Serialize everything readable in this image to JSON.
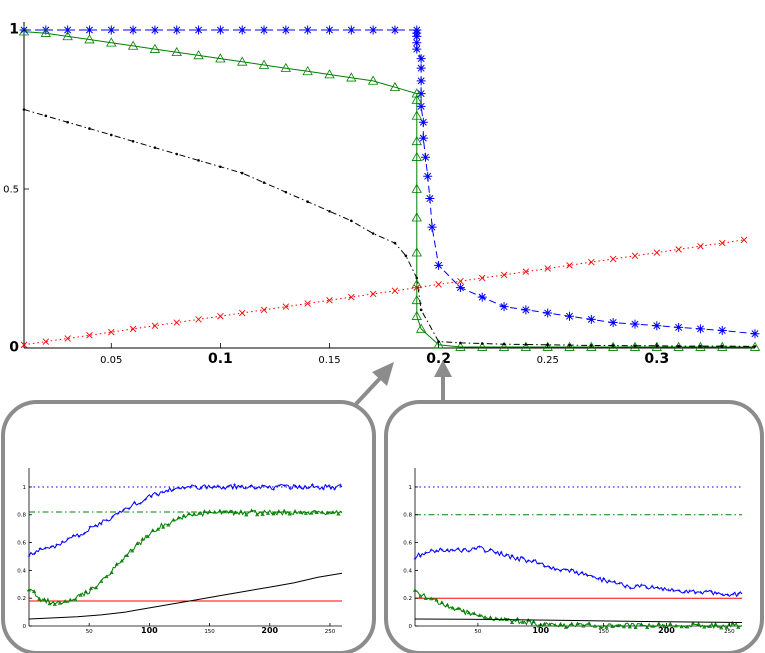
{
  "chart_data": [
    {
      "type": "line",
      "title": "",
      "xlabel": "",
      "ylabel": "",
      "xlim": [
        0.01,
        0.345
      ],
      "ylim": [
        0,
        1
      ],
      "grid": false,
      "x_ticks": [
        {
          "value": 0.05,
          "label": "0.05"
        },
        {
          "value": 0.1,
          "label": "0.1"
        },
        {
          "value": 0.15,
          "label": "0.15"
        },
        {
          "value": 0.2,
          "label": "0.2"
        },
        {
          "value": 0.25,
          "label": "0.25"
        },
        {
          "value": 0.3,
          "label": "0.3"
        }
      ],
      "y_ticks": [
        {
          "value": 0,
          "label": "0"
        },
        {
          "value": 0.5,
          "label": "0.5"
        },
        {
          "value": 1,
          "label": "1"
        }
      ],
      "series": [
        {
          "color": "#0000ff",
          "dash": "dashed",
          "marker": "asterisk",
          "x": [
            0.01,
            0.02,
            0.03,
            0.04,
            0.05,
            0.06,
            0.07,
            0.08,
            0.09,
            0.1,
            0.11,
            0.12,
            0.13,
            0.14,
            0.15,
            0.16,
            0.17,
            0.18,
            0.19,
            0.19,
            0.19,
            0.19,
            0.19,
            0.192,
            0.192,
            0.192,
            0.192,
            0.192,
            0.193,
            0.193,
            0.194,
            0.195,
            0.196,
            0.197,
            0.2,
            0.21,
            0.22,
            0.23,
            0.24,
            0.25,
            0.26,
            0.27,
            0.28,
            0.29,
            0.3,
            0.31,
            0.32,
            0.33,
            0.345
          ],
          "y": [
            1,
            1,
            1,
            1,
            1,
            1,
            1,
            1,
            1,
            1,
            1,
            1,
            1,
            1,
            1,
            1,
            1,
            1,
            1,
            0.99,
            0.98,
            0.96,
            0.94,
            0.91,
            0.88,
            0.84,
            0.8,
            0.76,
            0.71,
            0.66,
            0.6,
            0.54,
            0.47,
            0.38,
            0.26,
            0.19,
            0.16,
            0.13,
            0.12,
            0.11,
            0.1,
            0.09,
            0.08,
            0.075,
            0.07,
            0.065,
            0.06,
            0.055,
            0.045
          ]
        },
        {
          "color": "#008000",
          "dash": "solid",
          "marker": "triangle",
          "x": [
            0.01,
            0.02,
            0.03,
            0.04,
            0.05,
            0.06,
            0.07,
            0.08,
            0.09,
            0.1,
            0.11,
            0.12,
            0.13,
            0.14,
            0.15,
            0.16,
            0.17,
            0.18,
            0.19,
            0.19,
            0.19,
            0.19,
            0.19,
            0.19,
            0.19,
            0.19,
            0.19,
            0.19,
            0.19,
            0.192,
            0.2,
            0.21,
            0.22,
            0.23,
            0.24,
            0.25,
            0.26,
            0.27,
            0.28,
            0.29,
            0.3,
            0.31,
            0.32,
            0.33,
            0.345
          ],
          "y": [
            0.995,
            0.99,
            0.98,
            0.97,
            0.96,
            0.95,
            0.94,
            0.93,
            0.92,
            0.91,
            0.9,
            0.89,
            0.88,
            0.87,
            0.86,
            0.85,
            0.84,
            0.82,
            0.8,
            0.78,
            0.73,
            0.65,
            0.6,
            0.5,
            0.41,
            0.3,
            0.2,
            0.15,
            0.1,
            0.06,
            0.01,
            0.003,
            0.003,
            0.003,
            0.003,
            0.003,
            0.003,
            0.003,
            0.003,
            0.003,
            0.003,
            0.003,
            0.003,
            0.003,
            0.003
          ]
        },
        {
          "color": "#000000",
          "dash": "dashdot",
          "marker": "dot",
          "x": [
            0.01,
            0.02,
            0.03,
            0.04,
            0.05,
            0.06,
            0.07,
            0.08,
            0.09,
            0.1,
            0.11,
            0.12,
            0.13,
            0.14,
            0.15,
            0.16,
            0.17,
            0.18,
            0.185,
            0.19,
            0.192,
            0.2,
            0.21,
            0.22,
            0.23,
            0.24,
            0.25,
            0.26,
            0.27,
            0.28,
            0.29,
            0.3,
            0.31,
            0.32,
            0.33,
            0.345
          ],
          "y": [
            0.75,
            0.73,
            0.71,
            0.69,
            0.67,
            0.65,
            0.63,
            0.61,
            0.59,
            0.57,
            0.55,
            0.52,
            0.49,
            0.46,
            0.43,
            0.4,
            0.36,
            0.33,
            0.29,
            0.22,
            0.12,
            0.02,
            0.016,
            0.014,
            0.012,
            0.011,
            0.01,
            0.009,
            0.008,
            0.008,
            0.007,
            0.007,
            0.006,
            0.006,
            0.006,
            0.005
          ]
        },
        {
          "color": "#ff0000",
          "dash": "dotted",
          "marker": "x",
          "x": [
            0.01,
            0.02,
            0.03,
            0.04,
            0.05,
            0.06,
            0.07,
            0.08,
            0.09,
            0.1,
            0.11,
            0.12,
            0.13,
            0.14,
            0.15,
            0.16,
            0.17,
            0.18,
            0.19,
            0.2,
            0.21,
            0.22,
            0.23,
            0.24,
            0.25,
            0.26,
            0.27,
            0.28,
            0.29,
            0.3,
            0.31,
            0.32,
            0.33,
            0.34
          ],
          "y": [
            0.01,
            0.02,
            0.03,
            0.04,
            0.05,
            0.06,
            0.07,
            0.08,
            0.09,
            0.1,
            0.11,
            0.12,
            0.13,
            0.14,
            0.15,
            0.16,
            0.17,
            0.18,
            0.19,
            0.2,
            0.21,
            0.22,
            0.23,
            0.24,
            0.25,
            0.26,
            0.27,
            0.28,
            0.29,
            0.3,
            0.31,
            0.32,
            0.33,
            0.34
          ]
        }
      ]
    },
    {
      "type": "line",
      "title": "",
      "xlabel": "",
      "ylabel": "",
      "xlim": [
        0,
        260
      ],
      "ylim": [
        0,
        1.05
      ],
      "x_ticks": [
        {
          "value": 50,
          "label": "50"
        },
        {
          "value": 100,
          "label": "100"
        },
        {
          "value": 150,
          "label": "150"
        },
        {
          "value": 200,
          "label": "200"
        },
        {
          "value": 250,
          "label": "250"
        }
      ],
      "y_ticks": [
        {
          "value": 0,
          "label": "0"
        },
        {
          "value": 0.2,
          "label": "0.2"
        },
        {
          "value": 0.4,
          "label": "0.4"
        },
        {
          "value": 0.6,
          "label": "0.6"
        },
        {
          "value": 0.8,
          "label": "0.8"
        },
        {
          "value": 1,
          "label": "1"
        }
      ],
      "series": [
        {
          "color": "#0000ff",
          "dash": "dotted",
          "x": [
            0,
            260
          ],
          "y": [
            1,
            1
          ]
        },
        {
          "color": "#008000",
          "dash": "dashdot",
          "x": [
            0,
            260
          ],
          "y": [
            0.82,
            0.82
          ]
        },
        {
          "color": "#ff0000",
          "dash": "solid",
          "x": [
            0,
            260
          ],
          "y": [
            0.18,
            0.18
          ]
        },
        {
          "color": "#0000ff",
          "dash": "solid",
          "marker": "plus",
          "noisy": true,
          "x": [
            0,
            20,
            40,
            60,
            80,
            100,
            120,
            140,
            160,
            180,
            200,
            220,
            240,
            260
          ],
          "y": [
            0.52,
            0.57,
            0.65,
            0.74,
            0.84,
            0.93,
            0.99,
            1,
            1,
            1,
            1,
            1,
            1,
            1
          ]
        },
        {
          "color": "#008000",
          "dash": "solid",
          "marker": "triangle",
          "noisy": true,
          "x": [
            0,
            10,
            20,
            30,
            40,
            50,
            60,
            70,
            80,
            90,
            100,
            110,
            120,
            130,
            140,
            150,
            160,
            170,
            200,
            230,
            260
          ],
          "y": [
            0.27,
            0.19,
            0.17,
            0.18,
            0.21,
            0.25,
            0.32,
            0.41,
            0.5,
            0.58,
            0.66,
            0.72,
            0.76,
            0.79,
            0.805,
            0.81,
            0.815,
            0.815,
            0.815,
            0.815,
            0.815
          ]
        },
        {
          "color": "#000000",
          "dash": "solid",
          "x": [
            0,
            20,
            40,
            60,
            80,
            100,
            120,
            140,
            160,
            180,
            200,
            220,
            240,
            260
          ],
          "y": [
            0.05,
            0.058,
            0.067,
            0.08,
            0.1,
            0.13,
            0.16,
            0.19,
            0.22,
            0.25,
            0.28,
            0.31,
            0.35,
            0.38
          ]
        }
      ]
    },
    {
      "type": "line",
      "title": "",
      "xlabel": "",
      "ylabel": "",
      "xlim": [
        0,
        260
      ],
      "ylim": [
        0,
        1.05
      ],
      "x_ticks": [
        {
          "value": 50,
          "label": "50"
        },
        {
          "value": 100,
          "label": "100"
        },
        {
          "value": 150,
          "label": "150"
        },
        {
          "value": 200,
          "label": "200"
        },
        {
          "value": 250,
          "label": "250"
        }
      ],
      "y_ticks": [
        {
          "value": 0,
          "label": "0"
        },
        {
          "value": 0.2,
          "label": "0.2"
        },
        {
          "value": 0.4,
          "label": "0.4"
        },
        {
          "value": 0.6,
          "label": "0.6"
        },
        {
          "value": 0.8,
          "label": "0.8"
        },
        {
          "value": 1,
          "label": "1"
        }
      ],
      "series": [
        {
          "color": "#0000ff",
          "dash": "dotted",
          "x": [
            0,
            260
          ],
          "y": [
            1,
            1
          ]
        },
        {
          "color": "#008000",
          "dash": "dashdot",
          "x": [
            0,
            260
          ],
          "y": [
            0.8,
            0.8
          ]
        },
        {
          "color": "#ff0000",
          "dash": "solid",
          "x": [
            0,
            260
          ],
          "y": [
            0.2,
            0.2
          ]
        },
        {
          "color": "#0000ff",
          "dash": "solid",
          "marker": "plus",
          "noisy": true,
          "x": [
            0,
            10,
            20,
            30,
            40,
            50,
            60,
            70,
            80,
            90,
            100,
            110,
            120,
            130,
            140,
            150,
            160,
            170,
            180,
            190,
            200,
            210,
            220,
            230,
            240,
            250,
            260
          ],
          "y": [
            0.5,
            0.53,
            0.55,
            0.54,
            0.55,
            0.56,
            0.54,
            0.51,
            0.49,
            0.47,
            0.45,
            0.42,
            0.4,
            0.38,
            0.35,
            0.33,
            0.31,
            0.29,
            0.28,
            0.27,
            0.26,
            0.25,
            0.25,
            0.24,
            0.24,
            0.23,
            0.23
          ]
        },
        {
          "color": "#008000",
          "dash": "solid",
          "marker": "triangle",
          "noisy": true,
          "x": [
            0,
            10,
            20,
            30,
            40,
            50,
            60,
            70,
            80,
            90,
            100,
            110,
            120,
            140,
            160,
            180,
            200,
            230,
            260
          ],
          "y": [
            0.25,
            0.2,
            0.16,
            0.13,
            0.1,
            0.08,
            0.06,
            0.045,
            0.035,
            0.025,
            0.015,
            0.01,
            0.005,
            0.003,
            0.003,
            0.003,
            0.003,
            0.003,
            0.003
          ]
        },
        {
          "color": "#000000",
          "dash": "solid",
          "x": [
            0,
            40,
            80,
            120,
            160,
            200,
            260
          ],
          "y": [
            0.05,
            0.048,
            0.045,
            0.04,
            0.035,
            0.03,
            0.025
          ]
        }
      ]
    }
  ]
}
